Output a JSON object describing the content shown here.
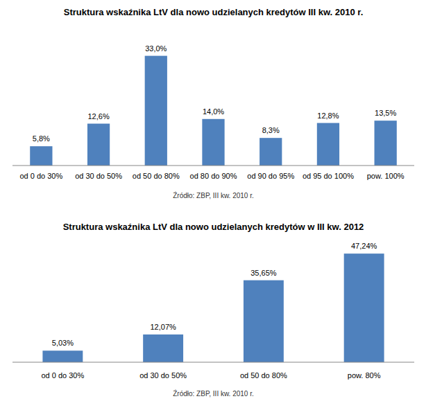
{
  "chart_data": [
    {
      "type": "bar",
      "title": "Struktura wskaźnika LtV dla nowo udzielanych kredytów III kw. 2010 r.",
      "categories": [
        "od 0 do 30%",
        "od 30 do 50%",
        "od 50 do 80%",
        "od 80 do 90%",
        "od 90 do 95%",
        "od 95 do 100%",
        "pow. 100%"
      ],
      "values": [
        5.8,
        12.6,
        33.0,
        14.0,
        8.3,
        12.8,
        13.5
      ],
      "value_labels": [
        "5,8%",
        "12,6%",
        "33,0%",
        "14,0%",
        "8,3%",
        "12,8%",
        "13,5%"
      ],
      "color": "#4f81bd",
      "ylim": [
        0,
        35
      ],
      "grid": false,
      "data_labels": true,
      "tick_labels": "x",
      "annotation": "Źródło: ZBP, III kw. 2010 r."
    },
    {
      "type": "bar",
      "title": "Struktura wskaźnika LtV dla nowo udzielanych kredytów w III kw. 2012",
      "categories": [
        "od 0 do 30%",
        "od 30 do 50%",
        "od 50 do 80%",
        "pow. 80%"
      ],
      "values": [
        5.03,
        12.07,
        35.65,
        47.24
      ],
      "value_labels": [
        "5,03%",
        "12,07%",
        "35,65%",
        "47,24%"
      ],
      "color": "#4f81bd",
      "ylim": [
        0,
        50
      ],
      "grid": false,
      "data_labels": true,
      "tick_labels": "x",
      "annotation": "Źródło: ZBP, III kw. 2010 r."
    }
  ]
}
